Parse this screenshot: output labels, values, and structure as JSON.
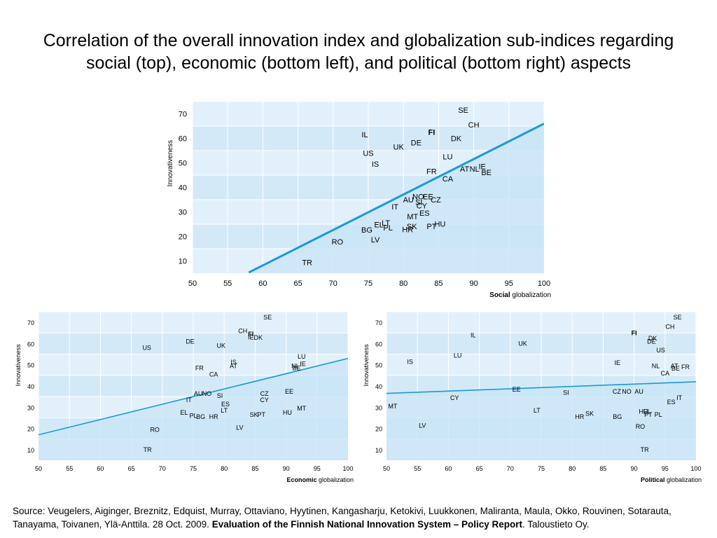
{
  "title": {
    "line1": "Correlation of the overall innovation index and globalization sub-indices regarding",
    "line2": "social (top), economic (bottom left), and political (bottom right) aspects"
  },
  "colors": {
    "band_dark": "#c8e4f6",
    "band_light": "#e2f0fb",
    "trend": "#1a9ad8",
    "highlight": "#e6007e"
  },
  "chart_data": [
    {
      "type": "scatter",
      "id": "social",
      "ylabel": "Innovativeness",
      "xlabel_bold": "Social",
      "xlabel_rest": " globalization",
      "xlim": [
        50,
        100
      ],
      "ylim": [
        5,
        75
      ],
      "xticks": [
        50,
        55,
        60,
        65,
        70,
        75,
        80,
        85,
        90,
        95,
        100
      ],
      "yticks": [
        10,
        20,
        30,
        40,
        50,
        60,
        70
      ],
      "trendline": [
        [
          58,
          5.3
        ],
        [
          100,
          66
        ]
      ],
      "highlight": "FI",
      "points": [
        {
          "label": "SE",
          "x": 88.5,
          "y": 71.5
        },
        {
          "label": "CH",
          "x": 90,
          "y": 65.5
        },
        {
          "label": "FI",
          "x": 84,
          "y": 62.5
        },
        {
          "label": "DK",
          "x": 87.5,
          "y": 60
        },
        {
          "label": "DE",
          "x": 81.8,
          "y": 58.3
        },
        {
          "label": "UK",
          "x": 79.3,
          "y": 56.5
        },
        {
          "label": "IL",
          "x": 74.5,
          "y": 61.5
        },
        {
          "label": "US",
          "x": 75,
          "y": 54
        },
        {
          "label": "IS",
          "x": 76,
          "y": 49.5
        },
        {
          "label": "LU",
          "x": 86.3,
          "y": 52.5
        },
        {
          "label": "FR",
          "x": 84,
          "y": 46.5
        },
        {
          "label": "AT",
          "x": 88.7,
          "y": 47.5
        },
        {
          "label": "NL",
          "x": 90.1,
          "y": 47.5
        },
        {
          "label": "IE",
          "x": 91.2,
          "y": 48.5
        },
        {
          "label": "BE",
          "x": 91.8,
          "y": 46.2
        },
        {
          "label": "CA",
          "x": 86.3,
          "y": 43.5
        },
        {
          "label": "AU",
          "x": 80.7,
          "y": 35
        },
        {
          "label": "NO",
          "x": 82.1,
          "y": 36.3
        },
        {
          "label": "EE",
          "x": 83.5,
          "y": 36.3
        },
        {
          "label": "CZ",
          "x": 84.6,
          "y": 35
        },
        {
          "label": "SI",
          "x": 82.2,
          "y": 34
        },
        {
          "label": "CY",
          "x": 82.6,
          "y": 32.5
        },
        {
          "label": "ES",
          "x": 83,
          "y": 29.6
        },
        {
          "label": "IT",
          "x": 78.8,
          "y": 32.2
        },
        {
          "label": "MT",
          "x": 81.3,
          "y": 28.2
        },
        {
          "label": "EL",
          "x": 76.5,
          "y": 24.8
        },
        {
          "label": "LT",
          "x": 77.5,
          "y": 25.5
        },
        {
          "label": "PL",
          "x": 77.8,
          "y": 23.5
        },
        {
          "label": "SK",
          "x": 81.2,
          "y": 24.2
        },
        {
          "label": "HR",
          "x": 80.6,
          "y": 22.8
        },
        {
          "label": "PT",
          "x": 84,
          "y": 24.2
        },
        {
          "label": "HU",
          "x": 85.2,
          "y": 25.2
        },
        {
          "label": "BG",
          "x": 74.8,
          "y": 22.7
        },
        {
          "label": "LV",
          "x": 76,
          "y": 18.7
        },
        {
          "label": "RO",
          "x": 70.6,
          "y": 17.8
        },
        {
          "label": "TR",
          "x": 66.3,
          "y": 9.4
        }
      ]
    },
    {
      "type": "scatter",
      "id": "economic",
      "ylabel": "Innovativeness",
      "xlabel_bold": "Economic",
      "xlabel_rest": " globalization",
      "xlim": [
        50,
        100
      ],
      "ylim": [
        5,
        75
      ],
      "xticks": [
        50,
        55,
        60,
        65,
        70,
        75,
        80,
        85,
        90,
        95,
        100
      ],
      "yticks": [
        10,
        20,
        30,
        40,
        50,
        60,
        70
      ],
      "trendline": [
        [
          50,
          17
        ],
        [
          100,
          53
        ]
      ],
      "highlight": "FI",
      "points": [
        {
          "label": "SE",
          "x": 87,
          "y": 72.5
        },
        {
          "label": "CH",
          "x": 83,
          "y": 66
        },
        {
          "label": "FI",
          "x": 84.3,
          "y": 64.5
        },
        {
          "label": "IE",
          "x": 84.3,
          "y": 63
        },
        {
          "label": "DK",
          "x": 85.5,
          "y": 62.8
        },
        {
          "label": "DE",
          "x": 74.5,
          "y": 61
        },
        {
          "label": "UK",
          "x": 79.5,
          "y": 59
        },
        {
          "label": "US",
          "x": 67.5,
          "y": 58
        },
        {
          "label": "LU",
          "x": 92.5,
          "y": 54
        },
        {
          "label": "IS",
          "x": 81.5,
          "y": 51.3
        },
        {
          "label": "AT",
          "x": 81.5,
          "y": 49.5
        },
        {
          "label": "NL",
          "x": 91.5,
          "y": 49.5
        },
        {
          "label": "IE",
          "x": 92.7,
          "y": 50.5
        },
        {
          "label": "BE",
          "x": 91.7,
          "y": 48.5
        },
        {
          "label": "FR",
          "x": 76,
          "y": 48.5
        },
        {
          "label": "CA",
          "x": 78.3,
          "y": 45.5
        },
        {
          "label": "AU",
          "x": 75.8,
          "y": 36.5
        },
        {
          "label": "NO",
          "x": 77.2,
          "y": 36.5
        },
        {
          "label": "SI",
          "x": 79.3,
          "y": 35.5
        },
        {
          "label": "CZ",
          "x": 86.5,
          "y": 36.5
        },
        {
          "label": "CY",
          "x": 86.5,
          "y": 33.5
        },
        {
          "label": "EE",
          "x": 90.5,
          "y": 37.5
        },
        {
          "label": "IT",
          "x": 74.3,
          "y": 33.5
        },
        {
          "label": "ES",
          "x": 80.2,
          "y": 31.5
        },
        {
          "label": "MT",
          "x": 92.5,
          "y": 29.5
        },
        {
          "label": "LT",
          "x": 80,
          "y": 28.5
        },
        {
          "label": "HU",
          "x": 90.2,
          "y": 27.5
        },
        {
          "label": "SK",
          "x": 84.8,
          "y": 26.5
        },
        {
          "label": "PT",
          "x": 86,
          "y": 26.5
        },
        {
          "label": "EL",
          "x": 73.5,
          "y": 27.5
        },
        {
          "label": "PL",
          "x": 75,
          "y": 26
        },
        {
          "label": "BG",
          "x": 76.2,
          "y": 25.5
        },
        {
          "label": "HR",
          "x": 78.3,
          "y": 25.5
        },
        {
          "label": "LV",
          "x": 82.5,
          "y": 20.5
        },
        {
          "label": "RO",
          "x": 68.8,
          "y": 19.5
        },
        {
          "label": "TR",
          "x": 67.6,
          "y": 10
        }
      ]
    },
    {
      "type": "scatter",
      "id": "political",
      "ylabel": "Innovativeness",
      "xlabel_bold": "Political",
      "xlabel_rest": " globalization",
      "xlim": [
        50,
        100
      ],
      "ylim": [
        5,
        75
      ],
      "xticks": [
        50,
        55,
        60,
        65,
        70,
        75,
        80,
        85,
        90,
        95,
        100
      ],
      "yticks": [
        10,
        20,
        30,
        40,
        50,
        60,
        70
      ],
      "trendline": [
        [
          50,
          36.5
        ],
        [
          100,
          42
        ]
      ],
      "highlight": "FI",
      "points": [
        {
          "label": "SE",
          "x": 97,
          "y": 72.5
        },
        {
          "label": "CH",
          "x": 95.8,
          "y": 68
        },
        {
          "label": "FI",
          "x": 90,
          "y": 65
        },
        {
          "label": "DK",
          "x": 93,
          "y": 62.5
        },
        {
          "label": "DE",
          "x": 92.8,
          "y": 61
        },
        {
          "label": "US",
          "x": 94.3,
          "y": 57
        },
        {
          "label": "IL",
          "x": 64,
          "y": 64
        },
        {
          "label": "UK",
          "x": 72,
          "y": 60
        },
        {
          "label": "LU",
          "x": 61.5,
          "y": 54.5
        },
        {
          "label": "IS",
          "x": 53.8,
          "y": 51.5
        },
        {
          "label": "IE",
          "x": 87.3,
          "y": 51
        },
        {
          "label": "NL",
          "x": 93.5,
          "y": 49.5
        },
        {
          "label": "AT",
          "x": 96.5,
          "y": 49.5
        },
        {
          "label": "FR",
          "x": 98.3,
          "y": 49
        },
        {
          "label": "BE",
          "x": 96.7,
          "y": 48.3
        },
        {
          "label": "CA",
          "x": 95,
          "y": 46
        },
        {
          "label": "EE",
          "x": 71,
          "y": 38.5
        },
        {
          "label": "SI",
          "x": 79,
          "y": 37
        },
        {
          "label": "CZ",
          "x": 87.2,
          "y": 37.5
        },
        {
          "label": "NO",
          "x": 88.8,
          "y": 37.5
        },
        {
          "label": "AU",
          "x": 90.8,
          "y": 37.5
        },
        {
          "label": "CY",
          "x": 61,
          "y": 34.5
        },
        {
          "label": "IT",
          "x": 97.3,
          "y": 34.5
        },
        {
          "label": "ES",
          "x": 96,
          "y": 32.5
        },
        {
          "label": "MT",
          "x": 51,
          "y": 30.5
        },
        {
          "label": "LT",
          "x": 74.3,
          "y": 28.5
        },
        {
          "label": "HU",
          "x": 91.5,
          "y": 28
        },
        {
          "label": "EL",
          "x": 92.1,
          "y": 28
        },
        {
          "label": "PT",
          "x": 92.3,
          "y": 26.5
        },
        {
          "label": "PL",
          "x": 93.9,
          "y": 26.5
        },
        {
          "label": "SK",
          "x": 82.8,
          "y": 27
        },
        {
          "label": "HR",
          "x": 81.2,
          "y": 25.5
        },
        {
          "label": "BG",
          "x": 87.3,
          "y": 25.5
        },
        {
          "label": "RO",
          "x": 91,
          "y": 21
        },
        {
          "label": "LV",
          "x": 55.8,
          "y": 21.5
        },
        {
          "label": "TR",
          "x": 91.7,
          "y": 10
        }
      ]
    }
  ],
  "source": {
    "prefix": "Source: Veugelers, Aiginger, Breznitz, Edquist, Murray, Ottaviano, Hyytinen, Kangasharju, Ketokivi, Luukkonen, Maliranta, Maula, Okko, Rouvinen, Sotarauta, Tanayama, Toivanen, Ylä-Anttila. 28 Oct. 2009. ",
    "bold": "Evaluation of the Finnish National Innovation System – Policy Report",
    "suffix": ". Taloustieto Oy."
  }
}
